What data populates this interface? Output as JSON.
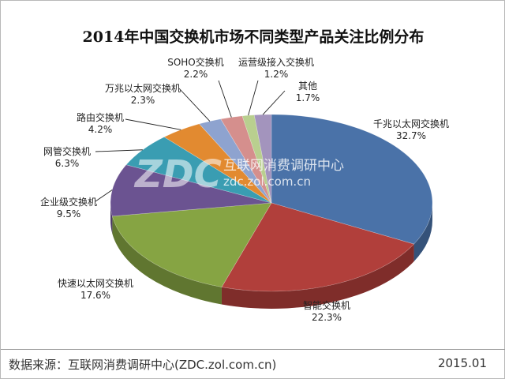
{
  "chart_data": {
    "type": "pie",
    "title": "2014年中国交换机市场不同类型产品关注比例分布",
    "slices": [
      {
        "label": "千兆以太网交换机",
        "value": 32.7,
        "value_label": "32.7%",
        "color": "#4a72a8"
      },
      {
        "label": "智能交换机",
        "value": 22.3,
        "value_label": "22.3%",
        "color": "#b13f3b"
      },
      {
        "label": "快速以太网交换机",
        "value": 17.6,
        "value_label": "17.6%",
        "color": "#86a443"
      },
      {
        "label": "企业级交换机",
        "value": 9.5,
        "value_label": "9.5%",
        "color": "#6b5391"
      },
      {
        "label": "网管交换机",
        "value": 6.3,
        "value_label": "6.3%",
        "color": "#3a9db2"
      },
      {
        "label": "路由交换机",
        "value": 4.2,
        "value_label": "4.2%",
        "color": "#e28a30"
      },
      {
        "label": "万兆以太网交换机",
        "value": 2.3,
        "value_label": "2.3%",
        "color": "#8ea3cf"
      },
      {
        "label": "SOHO交换机",
        "value": 2.2,
        "value_label": "2.2%",
        "color": "#d58f8d"
      },
      {
        "label": "运营级接入交换机",
        "value": 1.2,
        "value_label": "1.2%",
        "color": "#b9cf8f"
      },
      {
        "label": "其他",
        "value": 1.7,
        "value_label": "1.7%",
        "color": "#a394bd"
      }
    ]
  },
  "watermark": {
    "logo": "ZDC",
    "name": "互联网消费调研中心",
    "url": "zdc.zol.com.cn"
  },
  "footer": {
    "source": "数据来源：互联网消费调研中心(ZDC.zol.com.cn)",
    "date": "2015.01"
  }
}
